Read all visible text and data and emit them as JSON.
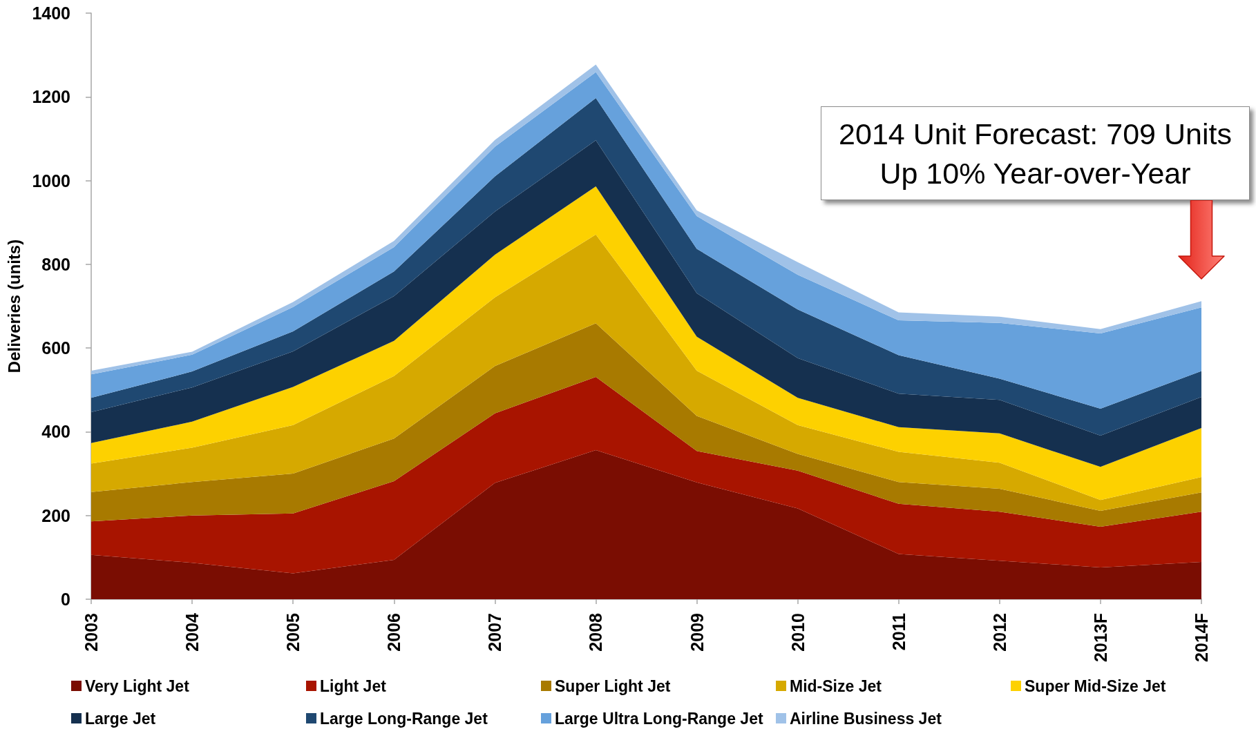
{
  "chart_data": {
    "type": "area",
    "stacked": true,
    "ylabel": "Deliveries (units)",
    "categories": [
      "2003",
      "2004",
      "2005",
      "2006",
      "2007",
      "2008",
      "2009",
      "2010",
      "2011",
      "2012",
      "2013F",
      "2014F"
    ],
    "series": [
      {
        "name": "Very Light Jet",
        "color": "#7a0d02",
        "values": [
          106,
          87,
          62,
          94,
          278,
          356,
          279,
          217,
          108,
          92,
          76,
          89
        ]
      },
      {
        "name": "Light Jet",
        "color": "#a81400",
        "values": [
          80,
          113,
          143,
          188,
          166,
          175,
          75,
          90,
          120,
          117,
          97,
          120
        ]
      },
      {
        "name": "Super Light Jet",
        "color": "#a87a00",
        "values": [
          70,
          80,
          95,
          102,
          113,
          128,
          84,
          40,
          52,
          55,
          38,
          46
        ]
      },
      {
        "name": "Mid-Size Jet",
        "color": "#d6a900",
        "values": [
          68,
          82,
          116,
          149,
          164,
          212,
          108,
          69,
          72,
          62,
          26,
          37
        ]
      },
      {
        "name": "Super Mid-Size Jet",
        "color": "#fdd100",
        "values": [
          49,
          62,
          91,
          84,
          102,
          115,
          81,
          65,
          59,
          70,
          79,
          117
        ]
      },
      {
        "name": "Large Jet",
        "color": "#15304f",
        "values": [
          74,
          82,
          85,
          107,
          103,
          110,
          104,
          95,
          80,
          80,
          75,
          74
        ]
      },
      {
        "name": "Large Long-Range Jet",
        "color": "#1f4871",
        "values": [
          34,
          38,
          48,
          59,
          84,
          101,
          106,
          116,
          92,
          51,
          64,
          62
        ]
      },
      {
        "name": "Large Ultra Long-Range Jet",
        "color": "#66a1dc",
        "values": [
          56,
          40,
          58,
          58,
          71,
          62,
          78,
          83,
          83,
          133,
          180,
          152
        ]
      },
      {
        "name": "Airline Business Jet",
        "color": "#a0c2e8",
        "values": [
          9,
          7,
          12,
          15,
          16,
          18,
          14,
          30,
          19,
          15,
          10,
          15
        ]
      }
    ],
    "ylim": [
      0,
      1400
    ],
    "yticks": [
      0,
      200,
      400,
      600,
      800,
      1000,
      1200,
      1400
    ],
    "legend": "bottom",
    "annotations": [
      "2014 Unit Forecast: 709 Units\nUp 10% Year-over-Year"
    ]
  }
}
